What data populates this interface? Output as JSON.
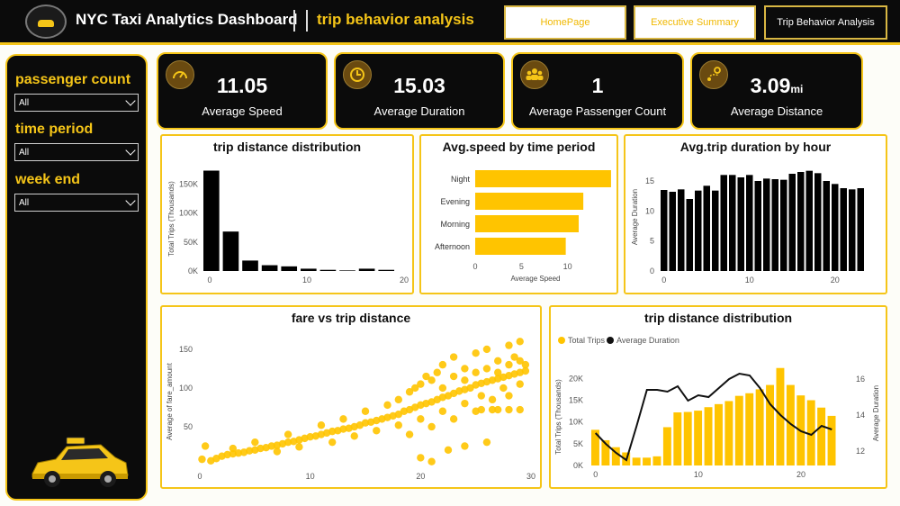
{
  "header": {
    "title": "NYC Taxi Analytics Dashboard",
    "subtitle": "trip behavior analysis",
    "nav": [
      "HomePage",
      "Executive Summary",
      "Trip Behavior Analysis"
    ]
  },
  "filters": [
    {
      "label": "passenger count",
      "value": "All"
    },
    {
      "label": "time period",
      "value": "All"
    },
    {
      "label": "week end",
      "value": "All"
    }
  ],
  "kpis": [
    {
      "value": "11.05",
      "unit": "",
      "label": "Average Speed",
      "icon": "speedometer-icon"
    },
    {
      "value": "15.03",
      "unit": "",
      "label": "Average Duration",
      "icon": "clock-icon"
    },
    {
      "value": "1",
      "unit": "",
      "label": "Average Passenger Count",
      "icon": "people-icon"
    },
    {
      "value": "3.09",
      "unit": "mi",
      "label": "Average Distance",
      "icon": "route-icon"
    }
  ],
  "colors": {
    "accent": "#f5c518",
    "dark": "#0b0b0b",
    "bar": "#ffc400"
  },
  "chart_data": [
    {
      "type": "bar",
      "title": "trip distance distribution",
      "ylabel": "Total Trips (Thousands)",
      "x": [
        0,
        2,
        4,
        6,
        8,
        10,
        12,
        14,
        16,
        18,
        20
      ],
      "values": [
        173,
        68,
        18,
        10,
        8,
        4,
        2,
        1,
        4,
        2,
        0
      ],
      "x_ticks": [
        0,
        10,
        20
      ],
      "y_ticks": [
        "0K",
        "50K",
        "100K",
        "150K"
      ],
      "ylim": [
        0,
        180
      ]
    },
    {
      "type": "bar",
      "orientation": "horizontal",
      "title": "Avg.speed by time period",
      "xlabel": "Average Speed",
      "categories": [
        "Night",
        "Evening",
        "Morning",
        "Afternoon"
      ],
      "values": [
        14.7,
        11.7,
        11.2,
        9.8
      ],
      "x_ticks": [
        0,
        5,
        10
      ],
      "xlim": [
        0,
        15
      ]
    },
    {
      "type": "bar",
      "title": "Avg.trip duration by hour",
      "ylabel": "Average Duration",
      "x": [
        0,
        1,
        2,
        3,
        4,
        5,
        6,
        7,
        8,
        9,
        10,
        11,
        12,
        13,
        14,
        15,
        16,
        17,
        18,
        19,
        20,
        21,
        22,
        23
      ],
      "values": [
        13.5,
        13.2,
        13.6,
        12,
        13.4,
        14.2,
        13.4,
        16,
        16,
        15.6,
        16,
        15,
        15.4,
        15.3,
        15.2,
        16.2,
        16.5,
        16.7,
        16.3,
        15,
        14.5,
        13.8,
        13.6,
        13.8
      ],
      "x_ticks": [
        0,
        10,
        20
      ],
      "y_ticks": [
        0,
        5,
        10,
        15
      ],
      "ylim": [
        0,
        18
      ]
    },
    {
      "type": "scatter",
      "title": "fare vs trip distance",
      "ylabel": "Average of fare_amount",
      "x_ticks": [
        0,
        10,
        20,
        30
      ],
      "y_ticks": [
        50,
        100,
        150
      ],
      "xlim": [
        0,
        30
      ],
      "ylim": [
        0,
        165
      ],
      "points": [
        [
          0.2,
          8
        ],
        [
          0.5,
          25
        ],
        [
          1,
          6
        ],
        [
          1.5,
          9
        ],
        [
          2,
          12
        ],
        [
          2.5,
          14
        ],
        [
          3,
          15
        ],
        [
          3.5,
          16
        ],
        [
          4,
          17
        ],
        [
          4.5,
          19
        ],
        [
          5,
          20
        ],
        [
          5.5,
          22
        ],
        [
          6,
          23
        ],
        [
          6.5,
          25
        ],
        [
          7,
          26
        ],
        [
          7.5,
          28
        ],
        [
          8,
          30
        ],
        [
          8.5,
          31
        ],
        [
          9,
          33
        ],
        [
          9.5,
          35
        ],
        [
          10,
          37
        ],
        [
          10.5,
          38
        ],
        [
          11,
          40
        ],
        [
          11.5,
          42
        ],
        [
          12,
          44
        ],
        [
          12.5,
          45
        ],
        [
          13,
          47
        ],
        [
          13.5,
          48
        ],
        [
          14,
          50
        ],
        [
          14.5,
          52
        ],
        [
          15,
          55
        ],
        [
          15.5,
          56
        ],
        [
          16,
          58
        ],
        [
          16.5,
          60
        ],
        [
          17,
          62
        ],
        [
          17.5,
          64
        ],
        [
          18,
          66
        ],
        [
          18.5,
          70
        ],
        [
          19,
          72
        ],
        [
          19.5,
          75
        ],
        [
          20,
          78
        ],
        [
          20.5,
          80
        ],
        [
          21,
          82
        ],
        [
          21.5,
          85
        ],
        [
          22,
          88
        ],
        [
          22.5,
          90
        ],
        [
          23,
          93
        ],
        [
          23.5,
          96
        ],
        [
          24,
          98
        ],
        [
          24.5,
          100
        ],
        [
          25,
          104
        ],
        [
          25.5,
          106
        ],
        [
          26,
          108
        ],
        [
          26.5,
          110
        ],
        [
          27,
          112
        ],
        [
          27.5,
          114
        ],
        [
          28,
          116
        ],
        [
          28.5,
          118
        ],
        [
          29,
          120
        ],
        [
          29.5,
          122
        ],
        [
          3,
          22
        ],
        [
          5,
          30
        ],
        [
          7,
          18
        ],
        [
          8,
          40
        ],
        [
          9,
          24
        ],
        [
          11,
          52
        ],
        [
          12,
          30
        ],
        [
          13,
          60
        ],
        [
          14,
          38
        ],
        [
          15,
          70
        ],
        [
          16,
          45
        ],
        [
          17,
          78
        ],
        [
          18,
          52
        ],
        [
          18,
          85
        ],
        [
          19,
          40
        ],
        [
          19.5,
          100
        ],
        [
          20,
          60
        ],
        [
          20.5,
          115
        ],
        [
          21,
          50
        ],
        [
          21.5,
          120
        ],
        [
          22,
          70
        ],
        [
          22,
          130
        ],
        [
          23,
          60
        ],
        [
          23,
          140
        ],
        [
          24,
          80
        ],
        [
          24,
          125
        ],
        [
          25,
          70
        ],
        [
          25,
          145
        ],
        [
          25.5,
          90
        ],
        [
          26,
          150
        ],
        [
          26.5,
          85
        ],
        [
          27,
          135
        ],
        [
          27.5,
          100
        ],
        [
          28,
          155
        ],
        [
          28,
          90
        ],
        [
          28.5,
          140
        ],
        [
          29,
          105
        ],
        [
          29,
          160
        ],
        [
          29.5,
          130
        ],
        [
          20,
          10
        ],
        [
          21,
          5
        ],
        [
          22.5,
          20
        ],
        [
          24,
          25
        ],
        [
          26,
          30
        ],
        [
          27,
          72
        ],
        [
          28,
          72
        ],
        [
          29,
          72
        ],
        [
          25.5,
          72
        ],
        [
          26.5,
          72
        ],
        [
          19,
          95
        ],
        [
          20,
          105
        ],
        [
          21,
          110
        ],
        [
          22,
          100
        ],
        [
          23,
          115
        ],
        [
          24,
          110
        ],
        [
          25,
          120
        ],
        [
          26,
          125
        ],
        [
          27,
          120
        ],
        [
          28,
          130
        ],
        [
          29,
          135
        ]
      ]
    },
    {
      "type": "bar",
      "title": "trip distance distribution",
      "legend": [
        "Total Trips",
        "Average Duration"
      ],
      "ylabel": "Total Trips (Thousands)",
      "y2label": "Average Duration",
      "x": [
        0,
        1,
        2,
        3,
        4,
        5,
        6,
        7,
        8,
        9,
        10,
        11,
        12,
        13,
        14,
        15,
        16,
        17,
        18,
        19,
        20,
        21,
        22,
        23
      ],
      "bars": [
        8.2,
        5.8,
        4.2,
        3.0,
        1.8,
        1.8,
        2.1,
        8.8,
        12.2,
        12.3,
        12.6,
        13.4,
        14.1,
        14.8,
        16.0,
        16.6,
        17.5,
        18.5,
        22.4,
        18.5,
        16.1,
        15.0,
        13.3,
        11.4
      ],
      "line": [
        13.0,
        12.4,
        11.9,
        11.5,
        13.4,
        15.4,
        15.4,
        15.3,
        15.6,
        14.8,
        15.1,
        15.0,
        15.5,
        16.0,
        16.3,
        16.2,
        15.5,
        14.6,
        14.0,
        13.5,
        13.1,
        12.9,
        13.4,
        13.2
      ],
      "x_ticks": [
        0,
        10,
        20
      ],
      "y_ticks": [
        "0K",
        "5K",
        "10K",
        "15K",
        "20K"
      ],
      "y2_ticks": [
        12,
        14,
        16
      ],
      "ylim": [
        0,
        24
      ],
      "y2lim": [
        11.2,
        17
      ]
    }
  ]
}
